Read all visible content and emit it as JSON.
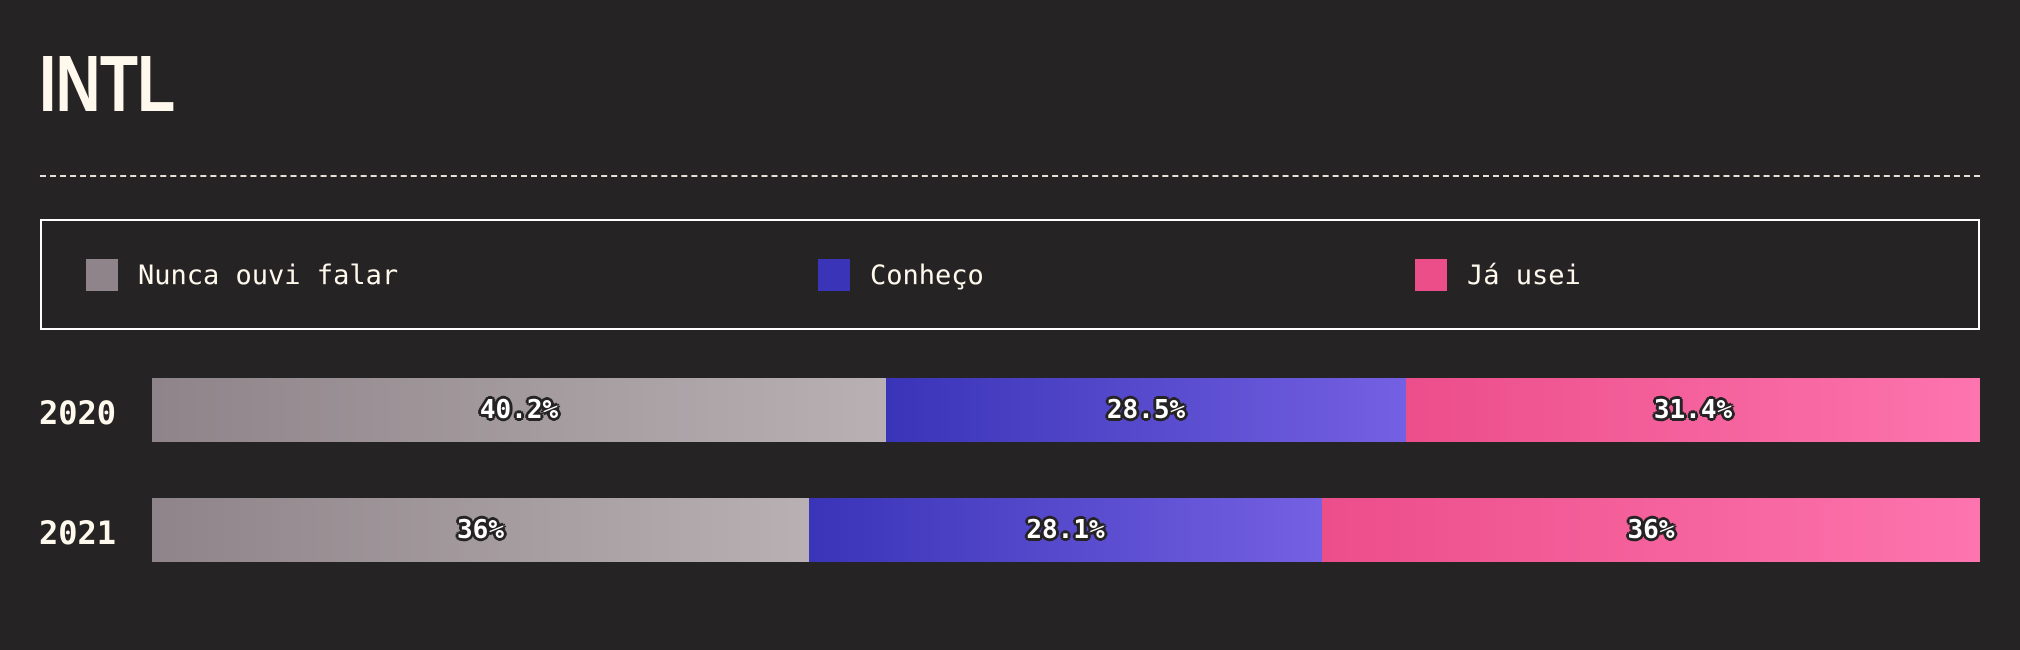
{
  "chart_data": {
    "type": "bar",
    "stacked": true,
    "orientation": "horizontal",
    "normalized_percent": true,
    "title": "INTL",
    "categories": [
      "2020",
      "2021"
    ],
    "series": [
      {
        "name": "Nunca ouvi falar",
        "values": [
          40.2,
          36
        ],
        "labels": [
          "40.2%",
          "36%"
        ],
        "color": "#8e8489",
        "color_end": "#b8b0b3"
      },
      {
        "name": "Conheço",
        "values": [
          28.5,
          28.1
        ],
        "labels": [
          "28.5%",
          "28.1%"
        ],
        "color": "#3a34b8",
        "color_end": "#7460e2"
      },
      {
        "name": "Já usei",
        "values": [
          31.4,
          36
        ],
        "labels": [
          "31.4%",
          "36%"
        ],
        "color": "#ec4e8a",
        "color_end": "#fd74ae"
      }
    ],
    "legend_placement": "top",
    "grid": false
  },
  "colors": {
    "background": "#262325",
    "text": "#fff8ec"
  }
}
